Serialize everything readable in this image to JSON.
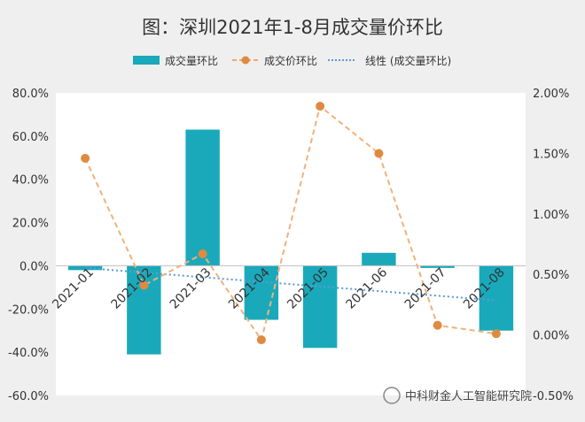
{
  "chart_data": {
    "type": "bar",
    "title": "图：深圳2021年1-8月成交量价环比",
    "categories": [
      "2021-01",
      "2021-02",
      "2021-03",
      "2021-04",
      "2021-05",
      "2021-06",
      "2021-07",
      "2021-08"
    ],
    "series": [
      {
        "name": "成交量环比",
        "axis": "left",
        "render": "bar",
        "color": "#1aa9bb",
        "values": [
          -0.02,
          -0.41,
          0.63,
          -0.25,
          -0.38,
          0.06,
          -0.01,
          -0.3
        ]
      },
      {
        "name": "成交价环比",
        "axis": "right",
        "render": "line-dashed-dots",
        "color": "#f0a868",
        "values": [
          0.0146,
          0.0041,
          0.0067,
          -0.0004,
          0.0189,
          0.015,
          0.0008,
          0.0001
        ]
      },
      {
        "name": "线性 (成交量环比)",
        "axis": "left",
        "render": "trendline-dotted",
        "color": "#5b9bd5"
      }
    ],
    "left_axis": {
      "min": -0.6,
      "max": 0.8,
      "step": 0.2,
      "tick_labels": [
        "80.0%",
        "60.0%",
        "40.0%",
        "20.0%",
        "0.0%",
        "-20.0%",
        "-40.0%",
        "-60.0%"
      ]
    },
    "right_axis": {
      "min": -0.005,
      "max": 0.02,
      "step": 0.005,
      "tick_labels": [
        "2.00%",
        "1.50%",
        "1.00%",
        "0.50%",
        "0.00%",
        "-0.50%"
      ]
    },
    "legend_position": "top",
    "grid": false
  },
  "watermark": "中科财金人工智能研究院"
}
